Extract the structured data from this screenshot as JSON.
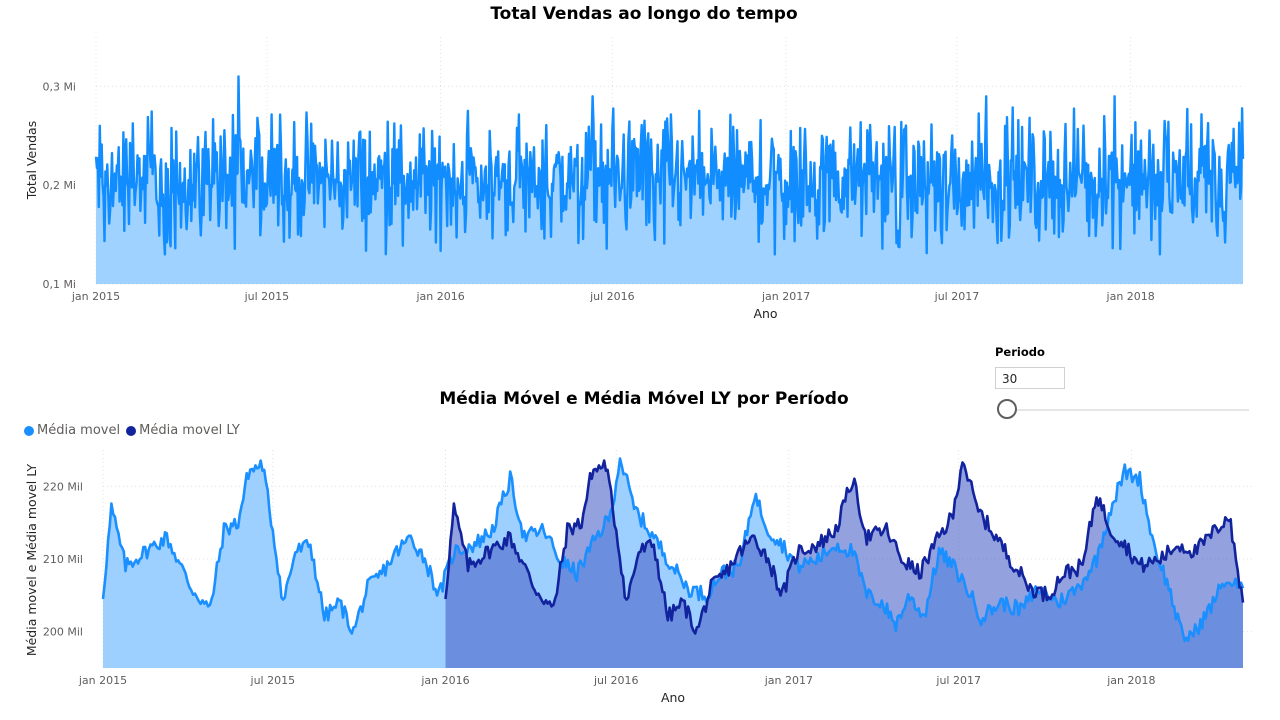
{
  "charts": {
    "top_title": "Total Vendas ao longo do tempo",
    "bottom_title": "Média Móvel e Média Móvel LY por Período"
  },
  "slicer": {
    "label": "Periodo",
    "value": "30",
    "position_fraction": 0.0
  },
  "colors": {
    "sales_line": "#118DFF",
    "sales_area": "#9FD2FF",
    "mm_line": "#1A8FFF",
    "mm_area": "#9ED0FF",
    "ly_line": "#12239E",
    "ly_area": "#4B63C9",
    "grid": "#e0e0e0"
  },
  "chart_data": [
    {
      "type": "area",
      "title": "Total Vendas ao longo do tempo",
      "xlabel": "Ano",
      "ylabel": "Total Vendas",
      "x_ticks": [
        "jan 2015",
        "jul 2015",
        "jan 2016",
        "jul 2016",
        "jan 2017",
        "jul 2017",
        "jan 2018"
      ],
      "y_ticks": [
        "0,1 Mi",
        "0,2 Mi",
        "0,3 Mi"
      ],
      "ylim": [
        0.1,
        0.35
      ],
      "x_range": [
        "2015-01-01",
        "2018-04-30"
      ],
      "granularity": "daily",
      "series": [
        {
          "name": "Total Vendas",
          "stats": {
            "typical_min": 0.15,
            "typical_max": 0.26,
            "mean": 0.205,
            "max": 0.31,
            "min": 0.13
          },
          "notable_points": [
            {
              "x": "2015-06-01",
              "y": 0.31
            },
            {
              "x": "2015-03-15",
              "y": 0.13
            },
            {
              "x": "2016-06-10",
              "y": 0.29
            },
            {
              "x": "2017-08-01",
              "y": 0.29
            },
            {
              "x": "2017-12-15",
              "y": 0.29
            },
            {
              "x": "2016-12-20",
              "y": 0.13
            },
            {
              "x": "2018-02-01",
              "y": 0.13
            }
          ]
        }
      ],
      "grid": true
    },
    {
      "type": "area",
      "title": "Média Móvel e Média Móvel LY por Período",
      "xlabel": "Ano",
      "ylabel": "Média movel e Média movel LY",
      "x_ticks": [
        "jan 2015",
        "jul 2015",
        "jan 2016",
        "jul 2016",
        "jan 2017",
        "jul 2017",
        "jan 2018"
      ],
      "y_ticks": [
        "200 Mil",
        "210 Mil",
        "220 Mil"
      ],
      "ylim": [
        195,
        225
      ],
      "legend": "top-left",
      "grid": true,
      "series": [
        {
          "name": "Média movel",
          "x_range": [
            "2015-01-01",
            "2018-04-30"
          ],
          "points": [
            [
              "2015-01-01",
              205
            ],
            [
              "2015-01-10",
              217
            ],
            [
              "2015-01-25",
              209
            ],
            [
              "2015-02-15",
              211
            ],
            [
              "2015-03-10",
              213
            ],
            [
              "2015-04-05",
              206
            ],
            [
              "2015-04-25",
              203
            ],
            [
              "2015-05-10",
              214
            ],
            [
              "2015-05-25",
              215
            ],
            [
              "2015-06-05",
              222
            ],
            [
              "2015-06-20",
              223
            ],
            [
              "2015-07-01",
              214
            ],
            [
              "2015-07-12",
              204
            ],
            [
              "2015-07-25",
              211
            ],
            [
              "2015-08-10",
              212
            ],
            [
              "2015-08-25",
              202
            ],
            [
              "2015-09-10",
              204
            ],
            [
              "2015-09-25",
              200
            ],
            [
              "2015-10-10",
              206
            ],
            [
              "2015-10-25",
              208
            ],
            [
              "2015-11-10",
              211
            ],
            [
              "2015-11-25",
              213
            ],
            [
              "2015-12-10",
              210
            ],
            [
              "2015-12-25",
              205
            ],
            [
              "2016-01-10",
              211
            ],
            [
              "2016-02-01",
              212
            ],
            [
              "2016-02-20",
              214
            ],
            [
              "2016-03-10",
              221
            ],
            [
              "2016-03-25",
              213
            ],
            [
              "2016-04-15",
              214
            ],
            [
              "2016-05-01",
              210
            ],
            [
              "2016-05-20",
              208
            ],
            [
              "2016-06-10",
              213
            ],
            [
              "2016-06-25",
              216
            ],
            [
              "2016-07-05",
              224
            ],
            [
              "2016-07-20",
              217
            ],
            [
              "2016-08-10",
              213
            ],
            [
              "2016-08-25",
              210
            ],
            [
              "2016-09-15",
              206
            ],
            [
              "2016-10-05",
              205
            ],
            [
              "2016-10-20",
              208
            ],
            [
              "2016-11-10",
              209
            ],
            [
              "2016-11-25",
              219
            ],
            [
              "2016-12-10",
              214
            ],
            [
              "2016-12-25",
              212
            ],
            [
              "2017-01-10",
              209
            ],
            [
              "2017-02-01",
              210
            ],
            [
              "2017-02-20",
              212
            ],
            [
              "2017-03-10",
              211
            ],
            [
              "2017-03-25",
              205
            ],
            [
              "2017-04-10",
              204
            ],
            [
              "2017-04-25",
              201
            ],
            [
              "2017-05-10",
              205
            ],
            [
              "2017-05-25",
              202
            ],
            [
              "2017-06-10",
              211
            ],
            [
              "2017-06-25",
              209
            ],
            [
              "2017-07-10",
              206
            ],
            [
              "2017-07-25",
              202
            ],
            [
              "2017-08-15",
              204
            ],
            [
              "2017-09-05",
              203
            ],
            [
              "2017-09-25",
              206
            ],
            [
              "2017-10-15",
              204
            ],
            [
              "2017-11-05",
              206
            ],
            [
              "2017-11-25",
              210
            ],
            [
              "2017-12-10",
              217
            ],
            [
              "2017-12-25",
              222
            ],
            [
              "2018-01-10",
              221
            ],
            [
              "2018-01-25",
              212
            ],
            [
              "2018-02-10",
              206
            ],
            [
              "2018-02-25",
              199
            ],
            [
              "2018-03-10",
              200
            ],
            [
              "2018-03-25",
              203
            ],
            [
              "2018-04-10",
              207
            ],
            [
              "2018-04-30",
              206
            ]
          ]
        },
        {
          "name": "Média movel LY",
          "x_range": [
            "2016-01-01",
            "2018-04-30"
          ],
          "points": [
            [
              "2016-01-01",
              205
            ],
            [
              "2016-01-10",
              217
            ],
            [
              "2016-01-25",
              209
            ],
            [
              "2016-02-15",
              211
            ],
            [
              "2016-03-10",
              213
            ],
            [
              "2016-04-05",
              206
            ],
            [
              "2016-04-25",
              203
            ],
            [
              "2016-05-10",
              214
            ],
            [
              "2016-05-25",
              215
            ],
            [
              "2016-06-05",
              222
            ],
            [
              "2016-06-20",
              223
            ],
            [
              "2016-07-01",
              214
            ],
            [
              "2016-07-12",
              204
            ],
            [
              "2016-07-25",
              211
            ],
            [
              "2016-08-10",
              212
            ],
            [
              "2016-08-25",
              202
            ],
            [
              "2016-09-10",
              204
            ],
            [
              "2016-09-25",
              200
            ],
            [
              "2016-10-10",
              206
            ],
            [
              "2016-10-25",
              208
            ],
            [
              "2016-11-10",
              211
            ],
            [
              "2016-11-25",
              213
            ],
            [
              "2016-12-10",
              210
            ],
            [
              "2016-12-25",
              205
            ],
            [
              "2017-01-10",
              211
            ],
            [
              "2017-02-01",
              212
            ],
            [
              "2017-02-20",
              214
            ],
            [
              "2017-03-10",
              221
            ],
            [
              "2017-03-25",
              213
            ],
            [
              "2017-04-15",
              214
            ],
            [
              "2017-05-01",
              210
            ],
            [
              "2017-05-20",
              208
            ],
            [
              "2017-06-10",
              213
            ],
            [
              "2017-06-25",
              216
            ],
            [
              "2017-07-05",
              224
            ],
            [
              "2017-07-20",
              217
            ],
            [
              "2017-08-10",
              213
            ],
            [
              "2017-08-25",
              210
            ],
            [
              "2017-09-15",
              206
            ],
            [
              "2017-10-05",
              205
            ],
            [
              "2017-10-20",
              208
            ],
            [
              "2017-11-10",
              209
            ],
            [
              "2017-11-25",
              219
            ],
            [
              "2017-12-10",
              214
            ],
            [
              "2017-12-25",
              212
            ],
            [
              "2018-01-10",
              209
            ],
            [
              "2018-02-01",
              210
            ],
            [
              "2018-02-20",
              212
            ],
            [
              "2018-03-10",
              211
            ],
            [
              "2018-03-25",
              213
            ],
            [
              "2018-04-15",
              216
            ],
            [
              "2018-04-30",
              204
            ]
          ]
        }
      ]
    }
  ]
}
